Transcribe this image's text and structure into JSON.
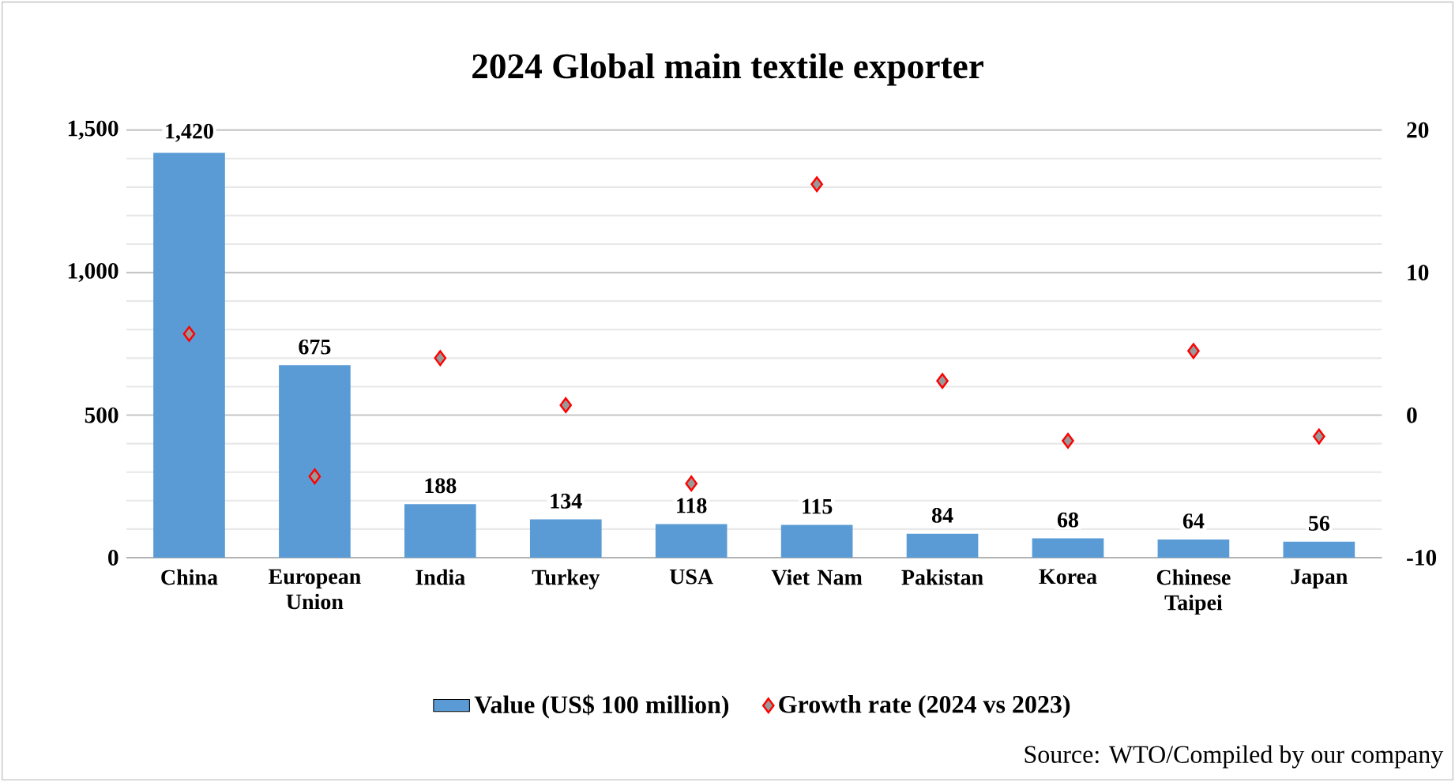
{
  "chart_data": {
    "type": "bar",
    "title": "2024 Global main textile exporter",
    "categories": [
      "China",
      "European Union",
      "India",
      "Turkey",
      "USA",
      "Viet Nam",
      "Pakistan",
      "Korea",
      "Chinese Taipei",
      "Japan"
    ],
    "series": [
      {
        "name": "Value (US$ 100 million)",
        "color": "#5b9bd5",
        "values": [
          1420,
          675,
          188,
          134,
          118,
          115,
          84,
          68,
          64,
          56
        ],
        "value_labels": [
          "1,420",
          "675",
          "188",
          "134",
          "118",
          "115",
          "84",
          "68",
          "64",
          "56"
        ]
      },
      {
        "name": "Growth rate (2024 vs 2023)",
        "type": "scatter",
        "axis": "y2",
        "marker": "diamond",
        "color": "#ff0000",
        "values": [
          5.7,
          -4.3,
          4.0,
          0.7,
          -4.8,
          16.2,
          2.4,
          -1.8,
          4.5,
          -1.5
        ]
      }
    ],
    "ylim": [
      0,
      1500
    ],
    "yticks": [
      0,
      {
        "value": 500,
        "label": "500"
      },
      {
        "value": 1000,
        "label": "1,000"
      },
      {
        "value": 1500,
        "label": "1,500"
      }
    ],
    "y2lim": [
      -10,
      20
    ],
    "y2ticks": [
      -10,
      0,
      10,
      20
    ],
    "grid": "y",
    "legend": "bottom",
    "annotations": [
      "Source: WTO/Compiled by our company"
    ]
  }
}
